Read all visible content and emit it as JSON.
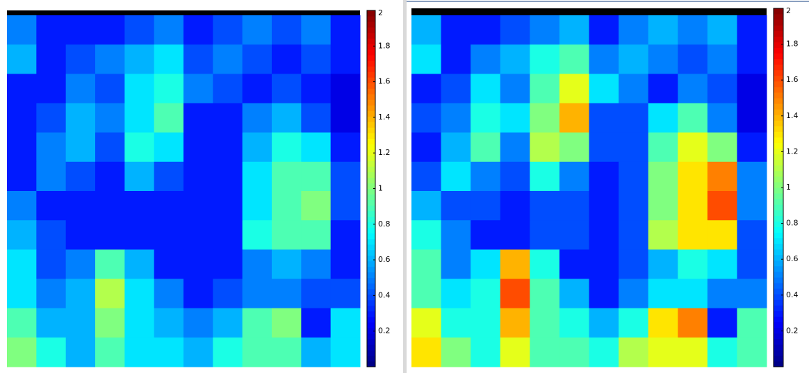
{
  "chart_data": [
    {
      "type": "heatmap",
      "colormap": "jet",
      "zlim": [
        0,
        2
      ],
      "zticks": [
        0.2,
        0.4,
        0.6,
        0.8,
        1,
        1.2,
        1.4,
        1.6,
        1.8,
        2
      ],
      "values": [
        [
          0.5,
          0.3,
          0.3,
          0.3,
          0.4,
          0.5,
          0.3,
          0.4,
          0.5,
          0.4,
          0.5,
          0.3
        ],
        [
          0.6,
          0.3,
          0.4,
          0.5,
          0.6,
          0.7,
          0.4,
          0.5,
          0.4,
          0.3,
          0.4,
          0.3
        ],
        [
          0.3,
          0.3,
          0.5,
          0.4,
          0.7,
          0.8,
          0.5,
          0.4,
          0.3,
          0.4,
          0.3,
          0.2
        ],
        [
          0.3,
          0.4,
          0.6,
          0.5,
          0.7,
          0.9,
          0.3,
          0.3,
          0.5,
          0.6,
          0.4,
          0.2
        ],
        [
          0.3,
          0.5,
          0.6,
          0.4,
          0.8,
          0.7,
          0.3,
          0.3,
          0.6,
          0.8,
          0.7,
          0.3
        ],
        [
          0.3,
          0.5,
          0.4,
          0.3,
          0.6,
          0.4,
          0.3,
          0.3,
          0.7,
          0.9,
          0.9,
          0.4
        ],
        [
          0.5,
          0.3,
          0.3,
          0.3,
          0.3,
          0.3,
          0.3,
          0.3,
          0.7,
          0.9,
          1.0,
          0.4
        ],
        [
          0.6,
          0.4,
          0.3,
          0.3,
          0.3,
          0.3,
          0.3,
          0.3,
          0.8,
          0.9,
          0.9,
          0.3
        ],
        [
          0.7,
          0.4,
          0.5,
          0.9,
          0.6,
          0.3,
          0.3,
          0.3,
          0.5,
          0.6,
          0.5,
          0.3
        ],
        [
          0.7,
          0.5,
          0.6,
          1.1,
          0.7,
          0.5,
          0.3,
          0.4,
          0.5,
          0.5,
          0.4,
          0.4
        ],
        [
          0.9,
          0.6,
          0.6,
          1.0,
          0.7,
          0.6,
          0.5,
          0.6,
          0.9,
          1.0,
          0.3,
          0.7
        ],
        [
          1.0,
          0.8,
          0.6,
          0.9,
          0.7,
          0.7,
          0.6,
          0.8,
          0.9,
          0.9,
          0.6,
          0.7
        ]
      ]
    },
    {
      "type": "heatmap",
      "colormap": "jet",
      "zlim": [
        0,
        2
      ],
      "zticks": [
        0.2,
        0.4,
        0.6,
        0.8,
        1,
        1.2,
        1.4,
        1.6,
        1.8,
        2
      ],
      "values": [
        [
          0.6,
          0.3,
          0.3,
          0.4,
          0.5,
          0.6,
          0.3,
          0.5,
          0.6,
          0.5,
          0.6,
          0.3
        ],
        [
          0.7,
          0.3,
          0.5,
          0.6,
          0.8,
          0.9,
          0.5,
          0.6,
          0.5,
          0.4,
          0.5,
          0.3
        ],
        [
          0.3,
          0.4,
          0.7,
          0.5,
          0.9,
          1.2,
          0.7,
          0.5,
          0.3,
          0.5,
          0.4,
          0.2
        ],
        [
          0.4,
          0.5,
          0.8,
          0.7,
          1.0,
          1.4,
          0.4,
          0.4,
          0.7,
          0.9,
          0.5,
          0.2
        ],
        [
          0.3,
          0.6,
          0.9,
          0.5,
          1.1,
          1.0,
          0.4,
          0.4,
          0.9,
          1.2,
          1.0,
          0.3
        ],
        [
          0.4,
          0.7,
          0.5,
          0.4,
          0.8,
          0.5,
          0.3,
          0.4,
          1.0,
          1.3,
          1.5,
          0.5
        ],
        [
          0.6,
          0.4,
          0.4,
          0.3,
          0.4,
          0.4,
          0.3,
          0.4,
          1.0,
          1.3,
          1.6,
          0.5
        ],
        [
          0.8,
          0.5,
          0.3,
          0.3,
          0.4,
          0.4,
          0.3,
          0.4,
          1.1,
          1.3,
          1.3,
          0.4
        ],
        [
          0.9,
          0.5,
          0.7,
          1.4,
          0.8,
          0.3,
          0.3,
          0.4,
          0.6,
          0.8,
          0.7,
          0.4
        ],
        [
          0.9,
          0.7,
          0.8,
          1.6,
          0.9,
          0.6,
          0.3,
          0.5,
          0.7,
          0.7,
          0.5,
          0.5
        ],
        [
          1.2,
          0.8,
          0.8,
          1.4,
          0.9,
          0.8,
          0.6,
          0.8,
          1.3,
          1.5,
          0.3,
          0.9
        ],
        [
          1.3,
          1.0,
          0.8,
          1.2,
          0.9,
          0.9,
          0.8,
          1.1,
          1.2,
          1.2,
          0.8,
          0.9
        ]
      ]
    }
  ]
}
